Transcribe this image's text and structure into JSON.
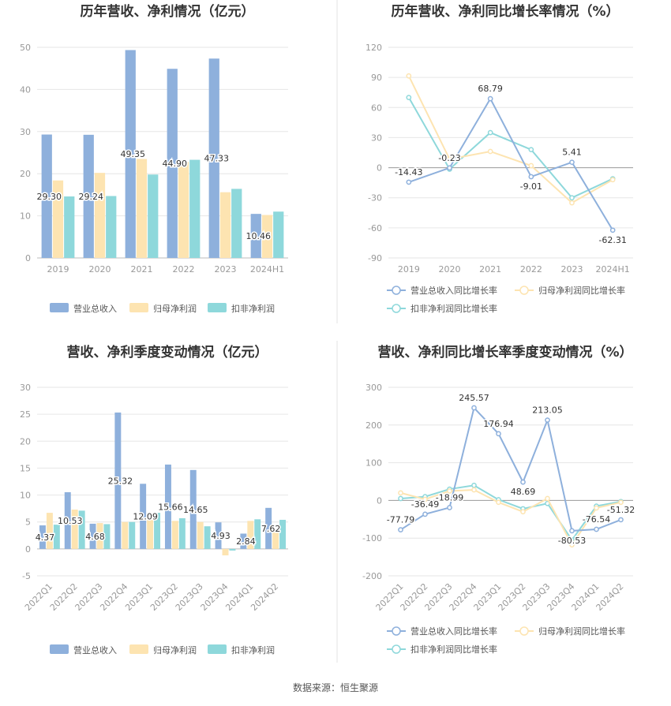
{
  "colors": {
    "revenue": "#8eb0dc",
    "net_profit": "#fde4b1",
    "deducted": "#8ed8db",
    "grid": "#e6e6e6",
    "axis": "#bbbbbb",
    "divider": "#e3e3e3"
  },
  "source": "数据来源：恒生聚源",
  "chart_data": [
    {
      "id": "annual-amount",
      "type": "bar",
      "title": "历年营收、净利情况（亿元）",
      "categories": [
        "2019",
        "2020",
        "2021",
        "2022",
        "2023",
        "2024H1"
      ],
      "ylim": [
        0,
        50
      ],
      "yticks": [
        "0",
        "10",
        "20",
        "30",
        "40",
        "50"
      ],
      "grid": true,
      "legend": "bottom",
      "series": [
        {
          "name": "营业总收入",
          "values": [
            29.3,
            29.24,
            49.35,
            44.9,
            47.33,
            10.46
          ],
          "labels": [
            "29.30",
            "29.24",
            "49.35",
            "44.90",
            "47.33",
            "10.46"
          ]
        },
        {
          "name": "归母净利润",
          "values": [
            18.4,
            20.2,
            23.5,
            22.8,
            15.6,
            10.2
          ]
        },
        {
          "name": "扣非净利润",
          "values": [
            14.6,
            14.7,
            19.8,
            23.3,
            16.4,
            11.0
          ]
        }
      ]
    },
    {
      "id": "annual-growth",
      "type": "line",
      "title": "历年营收、净利同比增长率情况（%）",
      "categories": [
        "2019",
        "2020",
        "2021",
        "2022",
        "2023",
        "2024H1"
      ],
      "ylim": [
        -90,
        120
      ],
      "yticks": [
        "-90",
        "-60",
        "-30",
        "0",
        "30",
        "60",
        "90",
        "120"
      ],
      "grid": true,
      "legend": "bottom",
      "series": [
        {
          "name": "营业总收入同比增长率",
          "values": [
            -14.43,
            -0.23,
            68.79,
            -9.01,
            5.41,
            -62.31
          ],
          "labels": [
            "-14.43",
            "-0.23",
            "68.79",
            "-9.01",
            "5.41",
            "-62.31"
          ]
        },
        {
          "name": "归母净利润同比增长率",
          "values": [
            91.5,
            8.5,
            16.2,
            2.0,
            -35.0,
            -12.0
          ]
        },
        {
          "name": "扣非净利润同比增长率",
          "values": [
            70.0,
            -1.5,
            35.0,
            18.0,
            -30.0,
            -11.0
          ]
        }
      ]
    },
    {
      "id": "quarterly-amount",
      "type": "bar",
      "title": "营收、净利季度变动情况（亿元）",
      "categories": [
        "2022Q1",
        "2022Q2",
        "2022Q3",
        "2022Q4",
        "2023Q1",
        "2023Q2",
        "2023Q3",
        "2023Q4",
        "2024Q1",
        "2024Q2"
      ],
      "ylim": [
        -5,
        30
      ],
      "yticks": [
        "-5",
        "0",
        "5",
        "10",
        "15",
        "20",
        "25",
        "30"
      ],
      "grid": true,
      "legend": "bottom",
      "series": [
        {
          "name": "营业总收入",
          "values": [
            4.37,
            10.53,
            4.68,
            25.32,
            12.09,
            15.66,
            14.65,
            4.93,
            2.84,
            7.62
          ],
          "labels": [
            "4.37",
            "10.53",
            "4.68",
            "25.32",
            "12.09",
            "15.66",
            "14.65",
            "4.93",
            "2.84",
            "7.62"
          ]
        },
        {
          "name": "归母净利润",
          "values": [
            6.7,
            7.3,
            4.8,
            5.0,
            5.5,
            5.2,
            5.0,
            -1.2,
            5.2,
            3.2
          ]
        },
        {
          "name": "扣非净利润",
          "values": [
            4.5,
            7.1,
            4.6,
            5.0,
            6.7,
            5.7,
            4.2,
            -0.3,
            5.5,
            5.4
          ]
        }
      ]
    },
    {
      "id": "quarterly-growth",
      "type": "line",
      "title": "营收、净利同比增长率季度变动情况（%）",
      "categories": [
        "2022Q1",
        "2022Q2",
        "2022Q3",
        "2022Q4",
        "2023Q1",
        "2023Q2",
        "2023Q3",
        "2023Q4",
        "2024Q1",
        "2024Q2"
      ],
      "ylim": [
        -200,
        300
      ],
      "yticks": [
        "-200",
        "-100",
        "0",
        "100",
        "200",
        "300"
      ],
      "grid": true,
      "legend": "bottom",
      "series": [
        {
          "name": "营业总收入同比增长率",
          "values": [
            -77.79,
            -36.49,
            -18.99,
            245.57,
            176.94,
            48.69,
            213.05,
            -80.53,
            -76.54,
            -51.32
          ],
          "labels": [
            "-77.79",
            "-36.49",
            "-18.99",
            "245.57",
            "176.94",
            "48.69",
            "213.05",
            "-80.53",
            "-76.54",
            "-51.32"
          ]
        },
        {
          "name": "归母净利润同比增长率",
          "values": [
            20.0,
            3.0,
            25.0,
            28.0,
            -5.0,
            -30.0,
            5.0,
            -118.0,
            -20.0,
            -5.0
          ]
        },
        {
          "name": "扣非净利润同比增长率",
          "values": [
            5.0,
            10.0,
            30.0,
            40.0,
            2.0,
            -22.0,
            -8.0,
            -105.0,
            -15.0,
            -3.0
          ]
        }
      ]
    }
  ]
}
